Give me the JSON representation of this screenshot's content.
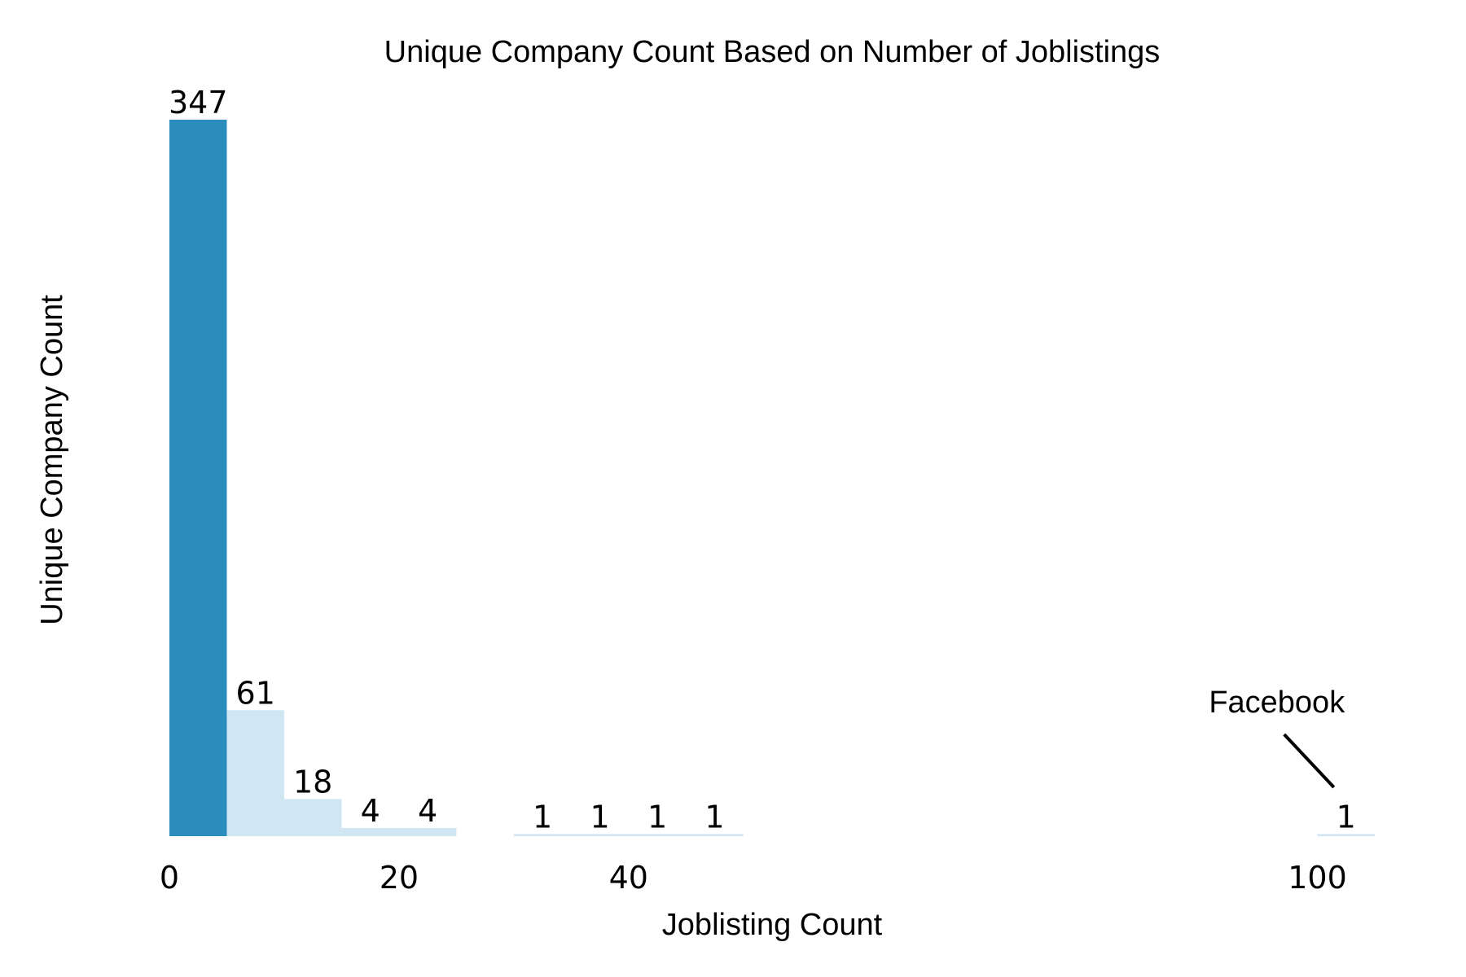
{
  "chart_data": {
    "type": "bar",
    "title": "Unique Company Count Based on Number of Joblistings",
    "xlabel": "Joblisting Count",
    "ylabel": "Unique Company Count",
    "xlim": [
      0,
      105
    ],
    "ylim": [
      0,
      347
    ],
    "xticks": [
      {
        "value": 0,
        "label": "0"
      },
      {
        "value": 20,
        "label": "20"
      },
      {
        "value": 40,
        "label": "40"
      },
      {
        "value": 100,
        "label": "100"
      }
    ],
    "grid": false,
    "bin_width": 5,
    "bins": [
      {
        "start": 0,
        "end": 5,
        "value": 347,
        "label": "347",
        "highlight": true
      },
      {
        "start": 5,
        "end": 10,
        "value": 61,
        "label": "61",
        "highlight": false
      },
      {
        "start": 10,
        "end": 15,
        "value": 18,
        "label": "18",
        "highlight": false
      },
      {
        "start": 15,
        "end": 20,
        "value": 4,
        "label": "4",
        "highlight": false
      },
      {
        "start": 20,
        "end": 25,
        "value": 4,
        "label": "4",
        "highlight": false
      },
      {
        "start": 30,
        "end": 35,
        "value": 1,
        "label": "1",
        "highlight": false
      },
      {
        "start": 35,
        "end": 40,
        "value": 1,
        "label": "1",
        "highlight": false
      },
      {
        "start": 40,
        "end": 45,
        "value": 1,
        "label": "1",
        "highlight": false
      },
      {
        "start": 45,
        "end": 50,
        "value": 1,
        "label": "1",
        "highlight": false
      },
      {
        "start": 100,
        "end": 105,
        "value": 1,
        "label": "1",
        "highlight": false
      }
    ],
    "annotation": {
      "text": "Facebook",
      "x": 102.5,
      "y": 1
    },
    "colors": {
      "highlight": "#2b8cbe",
      "normal": "#d0e7f3",
      "text": "#000000"
    }
  }
}
